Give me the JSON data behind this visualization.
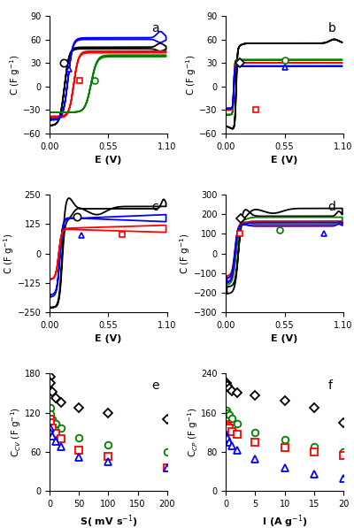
{
  "colors": [
    "black",
    "green",
    "red",
    "blue"
  ],
  "xlabel_cv": "E (V)",
  "ylabel_cv": "C (F g$^{-1}$)",
  "xlim_cv": [
    0,
    1.1
  ],
  "ylim_a": [
    -60,
    90
  ],
  "ylim_b": [
    -60,
    90
  ],
  "ylim_c": [
    -250,
    250
  ],
  "ylim_d": [
    -300,
    300
  ],
  "xlim_e": [
    0,
    200
  ],
  "ylim_e": [
    0,
    180
  ],
  "xlim_f": [
    0,
    20
  ],
  "ylim_f": [
    0,
    240
  ],
  "xticks_cv": [
    0,
    0.55,
    1.1
  ],
  "yticks_a": [
    -60,
    -30,
    0,
    30,
    60,
    90
  ],
  "yticks_b": [
    -60,
    -30,
    0,
    30,
    60,
    90
  ],
  "yticks_c": [
    -250,
    -125,
    0,
    125,
    250
  ],
  "yticks_d": [
    -300,
    -200,
    -100,
    0,
    100,
    200,
    300
  ],
  "xticks_e": [
    0,
    50,
    100,
    150,
    200
  ],
  "yticks_e": [
    0,
    60,
    120,
    180
  ],
  "xticks_f": [
    0,
    5,
    10,
    15,
    20
  ],
  "yticks_f": [
    0,
    80,
    160,
    240
  ],
  "e_xdata": [
    1,
    2,
    5,
    10,
    20,
    50,
    100,
    200
  ],
  "e_black": [
    175,
    165,
    152,
    142,
    135,
    128,
    120,
    110
  ],
  "e_green": [
    128,
    118,
    110,
    103,
    96,
    82,
    70,
    60
  ],
  "e_red": [
    110,
    104,
    96,
    88,
    80,
    62,
    53,
    36
  ],
  "e_blue": [
    96,
    90,
    84,
    76,
    68,
    52,
    45,
    36
  ],
  "f_xdata": [
    0.1,
    0.2,
    0.5,
    1,
    2,
    5,
    10,
    15,
    20
  ],
  "f_black": [
    220,
    215,
    210,
    205,
    200,
    195,
    185,
    170,
    140
  ],
  "f_green": [
    165,
    160,
    155,
    148,
    138,
    120,
    105,
    90,
    80
  ],
  "f_red": [
    135,
    132,
    128,
    122,
    115,
    100,
    88,
    80,
    72
  ],
  "f_blue": [
    112,
    108,
    100,
    92,
    83,
    65,
    48,
    35,
    25
  ]
}
